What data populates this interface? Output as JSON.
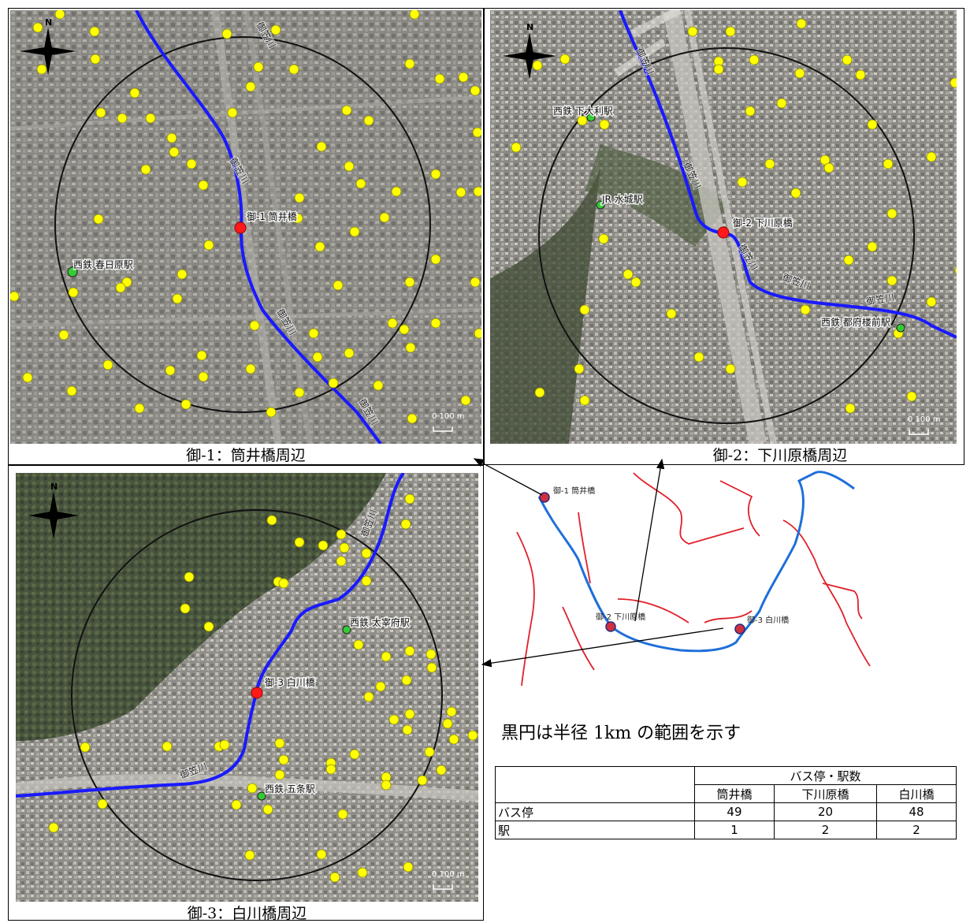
{
  "maps": {
    "m1": {
      "caption": "御-1：筒井橋周辺",
      "site_label": "御-1 筒井橋",
      "station_label": "西鉄 春日原駅",
      "river_labels": [
        "御笠川",
        "御笠川",
        "御笠川",
        "御笠川"
      ],
      "north": "N",
      "scale": "0 100 m"
    },
    "m2": {
      "caption": "御-2：下川原橋周辺",
      "site_label": "御-2 下川原橋",
      "station_labels": [
        "西鉄 下大利駅",
        "JR 水城駅",
        "西鉄 都府楼前駅"
      ],
      "river_labels": [
        "御笠川",
        "御笠川",
        "御笠川",
        "御笠川",
        "御笠川"
      ],
      "north": "N",
      "scale": "0 100 m"
    },
    "m3": {
      "caption": "御-3：白川橋周辺",
      "site_label": "御-3 白川橋",
      "station_labels": [
        "西鉄 太宰府駅",
        "西鉄 五条駅"
      ],
      "river_labels": [
        "御笠川",
        "御笠川"
      ],
      "north": "N",
      "scale": "0 100 m"
    }
  },
  "overview": {
    "site1": "御-1 筒井橋",
    "site2": "御-2 下川原橋",
    "site3": "御-3 白川橋"
  },
  "note": "黒円は半径 1km の範囲を示す",
  "table": {
    "group_header": "バス停・駅数",
    "columns": [
      "筒井橋",
      "下川原橋",
      "白川橋"
    ],
    "rows": [
      {
        "label": "バス停",
        "values": [
          "49",
          "20",
          "48"
        ]
      },
      {
        "label": "駅",
        "values": [
          "1",
          "2",
          "2"
        ]
      }
    ]
  },
  "colors": {
    "river": "#1a1aff",
    "bus_stop": "#ffff00",
    "station": "#33cc33",
    "site": "#ff0000",
    "overview_river": "#1e6fd9",
    "overview_boundary": "#e0202a"
  }
}
